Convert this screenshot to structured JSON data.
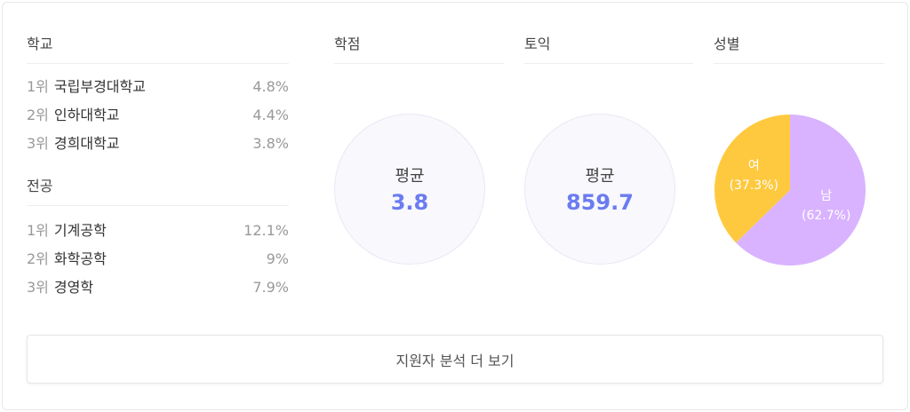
{
  "school": {
    "title": "학교",
    "items": [
      {
        "rank": "1위",
        "name": "국립부경대학교",
        "pct": "4.8%"
      },
      {
        "rank": "2위",
        "name": "인하대학교",
        "pct": "4.4%"
      },
      {
        "rank": "3위",
        "name": "경희대학교",
        "pct": "3.8%"
      }
    ]
  },
  "major": {
    "title": "전공",
    "items": [
      {
        "rank": "1위",
        "name": "기계공학",
        "pct": "12.1%"
      },
      {
        "rank": "2위",
        "name": "화학공학",
        "pct": "9%"
      },
      {
        "rank": "3위",
        "name": "경영학",
        "pct": "7.9%"
      }
    ]
  },
  "gpa": {
    "title": "학점",
    "label": "평균",
    "value": "3.8"
  },
  "toeic": {
    "title": "토익",
    "label": "평균",
    "value": "859.7"
  },
  "gender": {
    "title": "성별",
    "slices": [
      {
        "label": "남",
        "pct_text": "(62.7%)",
        "value": 62.7,
        "color": "#d9b3ff"
      },
      {
        "label": "여",
        "pct_text": "(37.3%)",
        "value": 37.3,
        "color": "#ffc93f"
      }
    ]
  },
  "more_button": "지원자 분석 더 보기"
}
